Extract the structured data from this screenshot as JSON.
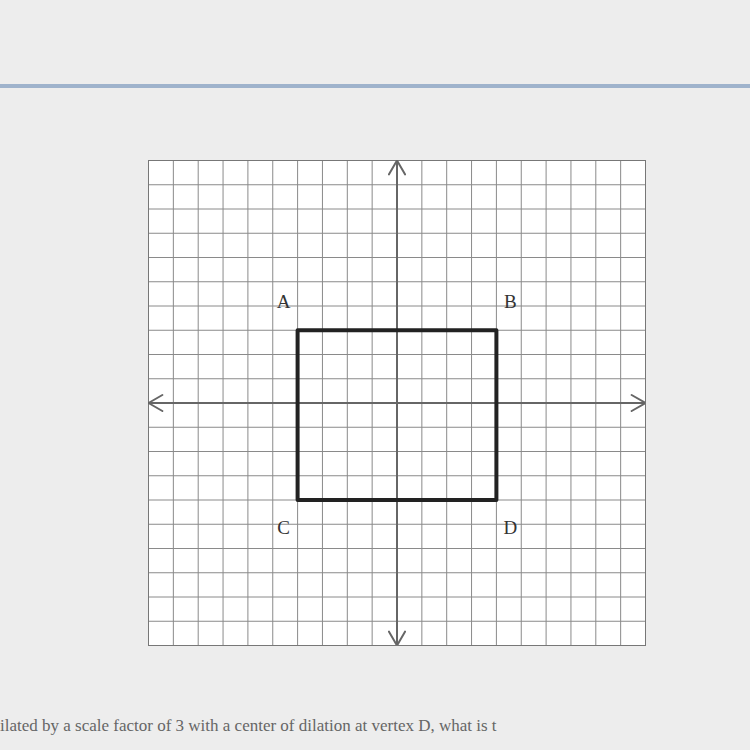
{
  "chart_data": {
    "type": "polygon",
    "vertices": [
      {
        "label": "A",
        "x": -4,
        "y": 3
      },
      {
        "label": "B",
        "x": 4,
        "y": 3
      },
      {
        "label": "D",
        "x": 4,
        "y": -4
      },
      {
        "label": "C",
        "x": -4,
        "y": -4
      }
    ],
    "color": "#222222",
    "xlim": [
      -10,
      10
    ],
    "ylim": [
      -10,
      10
    ],
    "xticks": [
      -10,
      -9,
      -8,
      -7,
      -6,
      -5,
      -4,
      -3,
      -2,
      -1,
      0,
      1,
      2,
      3,
      4,
      5,
      6,
      7,
      8,
      9,
      10
    ],
    "yticks": [
      -10,
      -9,
      -8,
      -7,
      -6,
      -5,
      -4,
      -3,
      -2,
      -1,
      0,
      1,
      2,
      3,
      4,
      5,
      6,
      7,
      8,
      9,
      10
    ],
    "grid": true,
    "tick_labels": false,
    "annotations": [
      "ilated by a scale factor of 3 with a center of dilation at vertex D, what is t"
    ]
  }
}
